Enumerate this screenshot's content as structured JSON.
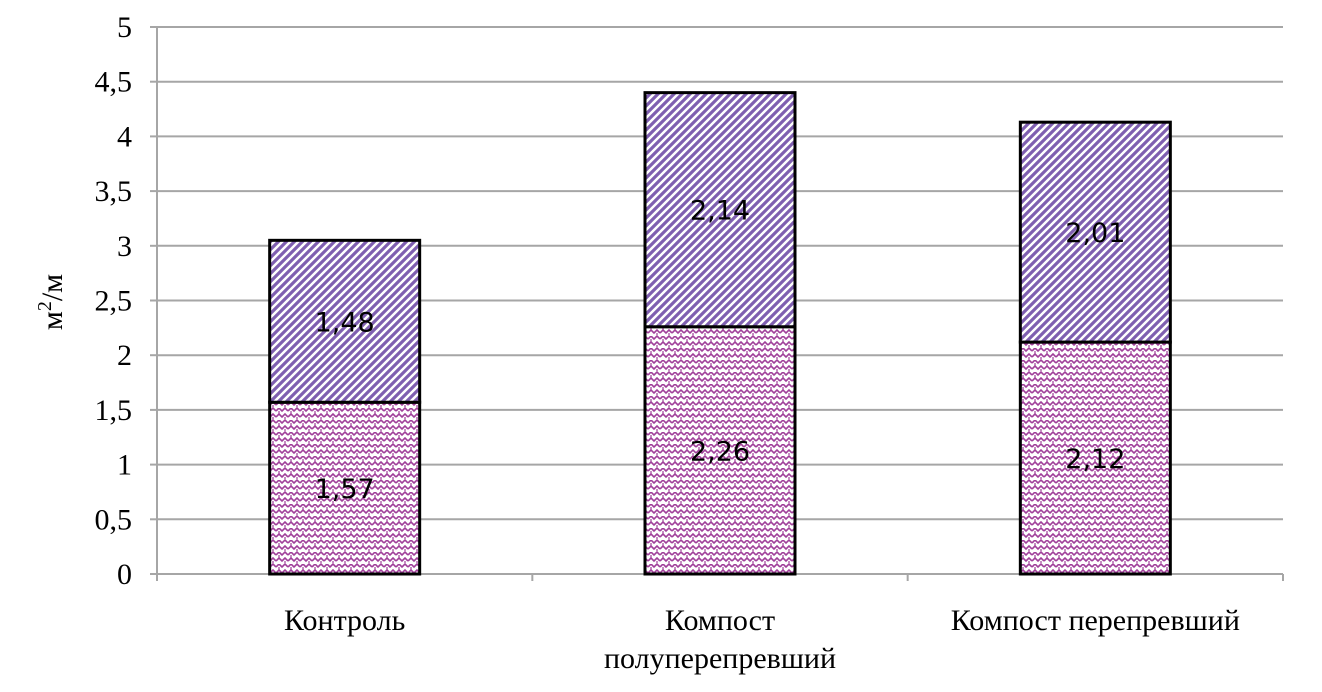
{
  "chart_data": {
    "type": "bar",
    "stacked": true,
    "title": "",
    "xlabel": "",
    "ylabel": "м2/м",
    "ylabel_parts": {
      "base": "м",
      "sup": "2",
      "rest": "/м"
    },
    "ylim": [
      0,
      5
    ],
    "ytick_step": 0.5,
    "yticks": [
      "0",
      "0,5",
      "1",
      "1,5",
      "2",
      "2,5",
      "3",
      "3,5",
      "4",
      "4,5",
      "5"
    ],
    "grid": true,
    "legend": "none",
    "categories": [
      [
        "Контроль"
      ],
      [
        "Компост",
        "полуперепревший"
      ],
      [
        "Компост перепревший"
      ]
    ],
    "series": [
      {
        "values": [
          1.57,
          2.26,
          2.12
        ],
        "labels": [
          "1,57",
          "2,26",
          "2,12"
        ],
        "color": "#a0409a",
        "pattern": "zigzag"
      },
      {
        "values": [
          1.48,
          2.14,
          2.01
        ],
        "labels": [
          "1,48",
          "2,14",
          "2,01"
        ],
        "color": "#7f5fb0",
        "pattern": "diagonal-stripes"
      }
    ],
    "gridline_color": "#a6a6a6"
  }
}
